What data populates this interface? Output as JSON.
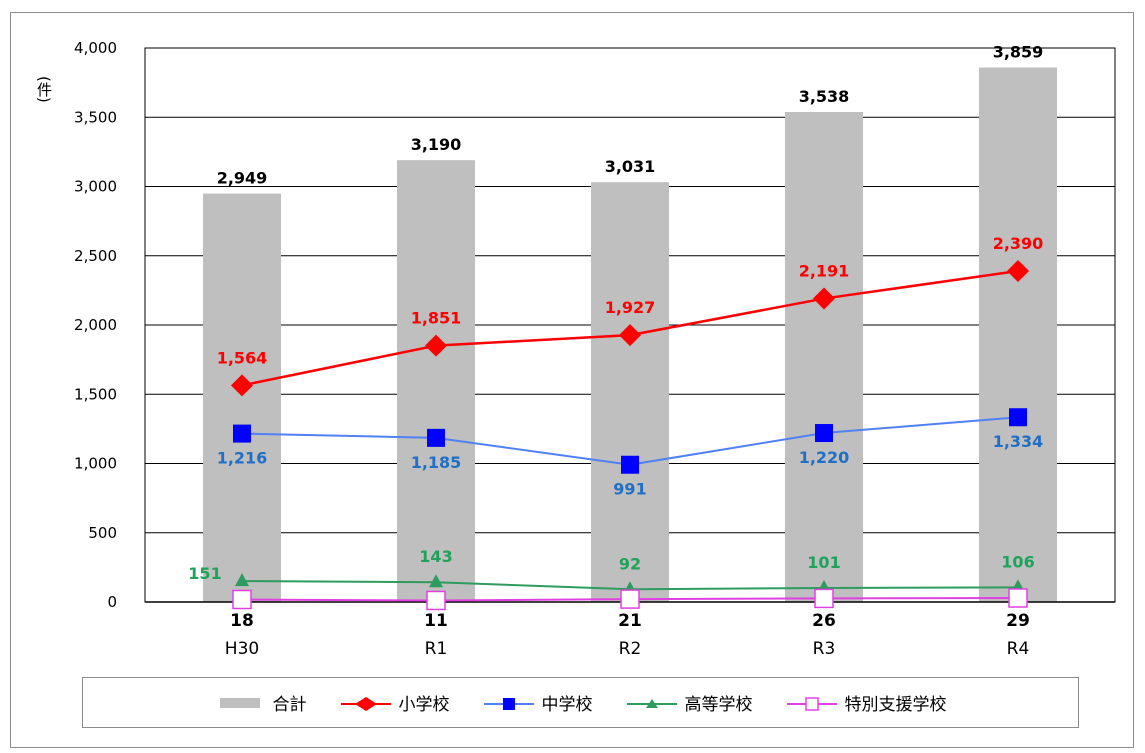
{
  "chart_data": {
    "type": "bar",
    "unit_label": "(件)",
    "categories": [
      "H30",
      "R1",
      "R2",
      "R3",
      "R4"
    ],
    "category_top_labels": [
      "18",
      "11",
      "21",
      "26",
      "29"
    ],
    "ylim": [
      0,
      4000
    ],
    "yticks": [
      "0",
      "500",
      "1,000",
      "1,500",
      "2,000",
      "2,500",
      "3,000",
      "3,500",
      "4,000"
    ],
    "ytick_values": [
      0,
      500,
      1000,
      1500,
      2000,
      2500,
      3000,
      3500,
      4000
    ],
    "grid": true,
    "legend_position": "bottom",
    "series": [
      {
        "name": "合計",
        "kind": "bar",
        "color": "#bfbfbf",
        "values": [
          2949,
          3190,
          3031,
          3538,
          3859
        ],
        "labels": [
          "2,949",
          "3,190",
          "3,031",
          "3,538",
          "3,859"
        ],
        "label_color": "#000000"
      },
      {
        "name": "小学校",
        "kind": "line",
        "marker": "diamond",
        "color": "#ff0000",
        "values": [
          1564,
          1851,
          1927,
          2191,
          2390
        ],
        "labels": [
          "1,564",
          "1,851",
          "1,927",
          "2,191",
          "2,390"
        ],
        "label_color": "#ff0000"
      },
      {
        "name": "中学校",
        "kind": "line",
        "marker": "square",
        "color": "#0000ff",
        "line_color": "#4f81f5",
        "values": [
          1216,
          1185,
          991,
          1220,
          1334
        ],
        "labels": [
          "1,216",
          "1,185",
          "991",
          "1,220",
          "1,334"
        ],
        "label_color": "#1f6fc6"
      },
      {
        "name": "高等学校",
        "kind": "line",
        "marker": "triangle",
        "color": "#2e9b5f",
        "values": [
          151,
          143,
          92,
          101,
          106
        ],
        "labels": [
          "151",
          "143",
          "92",
          "101",
          "106"
        ],
        "label_color": "#1fa35a"
      },
      {
        "name": "特別支援学校",
        "kind": "line",
        "marker": "open-square",
        "color": "#e040e0",
        "values": [
          18,
          11,
          21,
          26,
          29
        ]
      }
    ]
  }
}
